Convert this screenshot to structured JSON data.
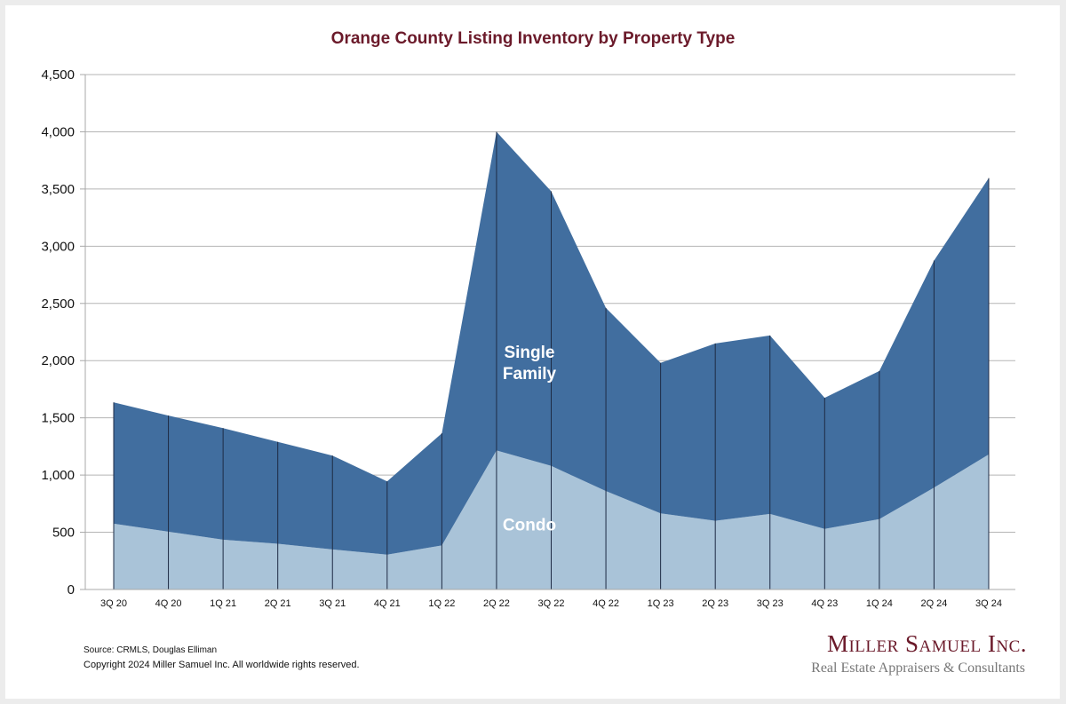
{
  "chart_data": {
    "type": "area",
    "stacked": true,
    "title": "Orange County Listing Inventory by Property Type",
    "xlabel": "",
    "ylabel": "",
    "ylim": [
      0,
      4500
    ],
    "yticks": [
      0,
      500,
      1000,
      1500,
      2000,
      2500,
      3000,
      3500,
      4000,
      4500
    ],
    "ytick_labels": [
      "0",
      "500",
      "1,000",
      "1,500",
      "2,000",
      "2,500",
      "3,000",
      "3,500",
      "4,000",
      "4,500"
    ],
    "grid": true,
    "categories": [
      "3Q 20",
      "4Q 20",
      "1Q 21",
      "2Q 21",
      "3Q 21",
      "4Q 21",
      "1Q 22",
      "2Q 22",
      "3Q 22",
      "4Q 22",
      "1Q 23",
      "2Q 23",
      "3Q 23",
      "4Q 23",
      "1Q 24",
      "2Q 24",
      "3Q 24"
    ],
    "series": [
      {
        "name": "Condo",
        "label": "Condo",
        "color": "#a9c3d8",
        "values": [
          575,
          505,
          435,
          400,
          350,
          305,
          385,
          1215,
          1080,
          860,
          665,
          600,
          660,
          530,
          615,
          890,
          1180
        ]
      },
      {
        "name": "Single Family",
        "label_lines": [
          "Single",
          "Family"
        ],
        "color": "#416e9f",
        "values": [
          1060,
          1015,
          975,
          890,
          820,
          640,
          980,
          2785,
          2400,
          1600,
          1315,
          1550,
          1560,
          1145,
          1295,
          1985,
          2415
        ]
      }
    ],
    "totals": [
      1635,
      1520,
      1410,
      1290,
      1170,
      945,
      1365,
      4000,
      3480,
      2460,
      1980,
      2150,
      2220,
      1675,
      1910,
      2875,
      3595
    ],
    "legend": "inline-labels"
  },
  "footer": {
    "source": "Source: CRMLS, Douglas Elliman",
    "copyright": "Copyright 2024 Miller Samuel Inc.  All worldwide rights reserved."
  },
  "logo": {
    "name": "Miller Samuel Inc.",
    "tagline": "Real Estate Appraisers & Consultants"
  },
  "colors": {
    "title": "#6b1a2a",
    "single_family": "#416e9f",
    "condo": "#a9c3d8"
  }
}
